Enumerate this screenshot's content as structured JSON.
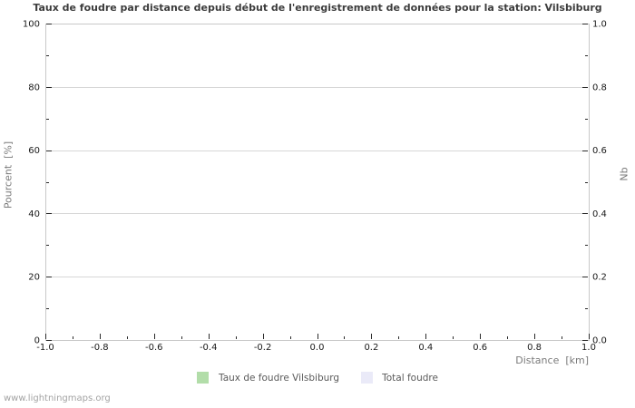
{
  "chart_data": {
    "type": "area",
    "title": "Taux de foudre par distance depuis début de l'enregistrement de données pour la station: Vilsbiburg",
    "x_axis": {
      "label": "Distance  [km]",
      "range": [
        -1.0,
        1.0
      ],
      "tick_values": [
        -1.0,
        -0.8,
        -0.6,
        -0.4,
        -0.2,
        0.0,
        0.2,
        0.4,
        0.6,
        0.8,
        1.0
      ],
      "tick_labels": [
        "-1.0",
        "-0.8",
        "-0.6",
        "-0.4",
        "-0.2",
        "0.0",
        "0.2",
        "0.4",
        "0.6",
        "0.8",
        "1.0"
      ],
      "minor_tick_step": 0.1
    },
    "y_axis_left": {
      "label": "Pourcent  [%]",
      "range": [
        0,
        100
      ],
      "tick_values": [
        0,
        20,
        40,
        60,
        80,
        100
      ],
      "tick_labels": [
        "0",
        "20",
        "40",
        "60",
        "80",
        "100"
      ],
      "minor_tick_step": 10
    },
    "y_axis_right": {
      "label": "Nb",
      "range": [
        0.0,
        1.0
      ],
      "tick_values": [
        0.0,
        0.2,
        0.4,
        0.6,
        0.8,
        1.0
      ],
      "tick_labels": [
        "0.0",
        "0.2",
        "0.4",
        "0.6",
        "0.8",
        "1.0"
      ],
      "minor_tick_step": 0.1
    },
    "grid": {
      "horizontal_major": true,
      "vertical": false
    },
    "series": [
      {
        "name": "Taux de foudre Vilsbiburg",
        "color": "#b2dda9",
        "values": []
      },
      {
        "name": "Total foudre",
        "color": "#eaeaf8",
        "values": []
      }
    ],
    "legend_position": "bottom-center",
    "plot_empty": true
  },
  "page": {
    "watermark": "www.lightningmaps.org"
  },
  "colors": {
    "background": "#ffffff",
    "plot_border": "#c8c8c8",
    "gridline": "#d7d7d7",
    "tick": "#2a2a2a",
    "tick_label": "#1a1a1a",
    "title": "#3c3c3c",
    "axis_title": "#7a7a7a",
    "legend_text": "#5a5a5a",
    "watermark": "#a3a3a3"
  }
}
